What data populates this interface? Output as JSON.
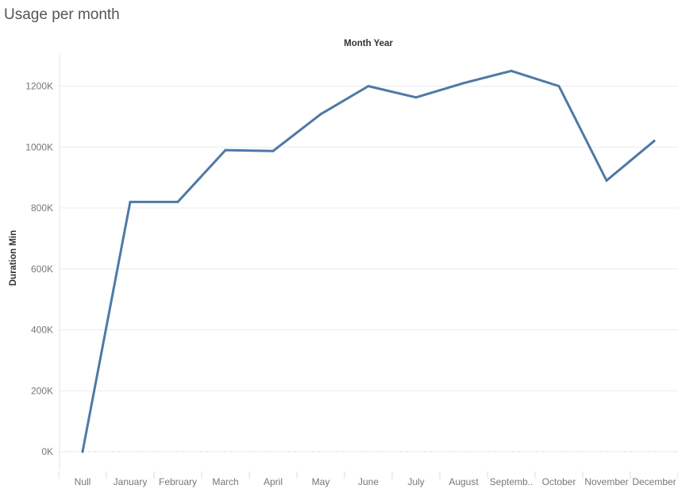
{
  "title": "Usage per month",
  "chart_data": {
    "type": "line",
    "title": "Usage per month",
    "xlabel": "Month Year",
    "ylabel": "Duration Min",
    "categories": [
      "Null",
      "January",
      "February",
      "March",
      "April",
      "May",
      "June",
      "July",
      "August",
      "Septemb..",
      "October",
      "November",
      "December"
    ],
    "series": [
      {
        "values": [
          0,
          820000,
          820000,
          990000,
          987000,
          1108000,
          1200000,
          1163000,
          1210000,
          1250000,
          1200000,
          890000,
          1020000
        ],
        "color": "#4e79a7"
      }
    ],
    "ylim": [
      0,
      1250000
    ],
    "yticks": [
      0,
      200000,
      400000,
      600000,
      800000,
      1000000,
      1200000
    ],
    "ytick_labels": [
      "0K",
      "200K",
      "400K",
      "600K",
      "800K",
      "1000K",
      "1200K"
    ],
    "grid": true,
    "legend": "none"
  }
}
